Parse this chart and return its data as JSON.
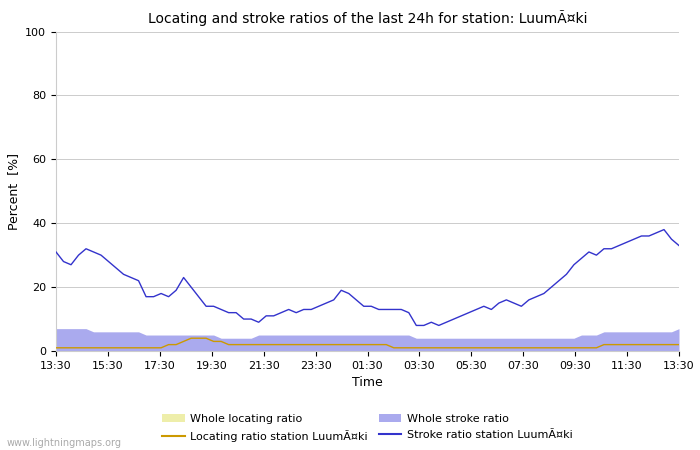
{
  "title": "Locating and stroke ratios of the last 24h for station: LuumÃ¤ki",
  "xlabel": "Time",
  "ylabel": "Percent  [%]",
  "ylim": [
    0,
    100
  ],
  "yticks": [
    0,
    20,
    40,
    60,
    80,
    100
  ],
  "xtick_labels": [
    "13:30",
    "15:30",
    "17:30",
    "19:30",
    "21:30",
    "23:30",
    "01:30",
    "03:30",
    "05:30",
    "07:30",
    "09:30",
    "11:30",
    "13:30"
  ],
  "watermark": "www.lightningmaps.org",
  "bg_color": "#ffffff",
  "plot_bg_color": "#ffffff",
  "grid_color": "#cccccc",
  "stroke_ratio_color": "#3333cc",
  "locating_ratio_color": "#cc9900",
  "whole_stroke_fill_color": "#aaaaee",
  "whole_locating_fill_color": "#eeeeaa",
  "legend_labels": [
    "Whole locating ratio",
    "Locating ratio station LuumÃ¤ki",
    "Whole stroke ratio",
    "Stroke ratio station LuumÃ¤ki"
  ],
  "stroke_ratio": [
    31,
    28,
    27,
    30,
    32,
    31,
    30,
    28,
    26,
    24,
    23,
    22,
    17,
    17,
    18,
    17,
    19,
    23,
    20,
    17,
    14,
    14,
    13,
    12,
    12,
    10,
    10,
    9,
    11,
    11,
    12,
    13,
    12,
    13,
    13,
    14,
    15,
    16,
    19,
    18,
    16,
    14,
    14,
    13,
    13,
    13,
    13,
    12,
    8,
    8,
    9,
    8,
    9,
    10,
    11,
    12,
    13,
    14,
    13,
    15,
    16,
    15,
    14,
    16,
    17,
    18,
    20,
    22,
    24,
    27,
    29,
    31,
    30,
    32,
    32,
    33,
    34,
    35,
    36,
    36,
    37,
    38,
    35,
    33
  ],
  "locating_ratio": [
    1,
    1,
    1,
    1,
    1,
    1,
    1,
    1,
    1,
    1,
    1,
    1,
    1,
    1,
    1,
    2,
    2,
    3,
    4,
    4,
    4,
    3,
    3,
    2,
    2,
    2,
    2,
    2,
    2,
    2,
    2,
    2,
    2,
    2,
    2,
    2,
    2,
    2,
    2,
    2,
    2,
    2,
    2,
    2,
    2,
    1,
    1,
    1,
    1,
    1,
    1,
    1,
    1,
    1,
    1,
    1,
    1,
    1,
    1,
    1,
    1,
    1,
    1,
    1,
    1,
    1,
    1,
    1,
    1,
    1,
    1,
    1,
    1,
    2,
    2,
    2,
    2,
    2,
    2,
    2,
    2,
    2,
    2,
    2
  ],
  "whole_stroke_ratio": [
    7,
    7,
    7,
    7,
    7,
    6,
    6,
    6,
    6,
    6,
    6,
    6,
    5,
    5,
    5,
    5,
    5,
    5,
    5,
    5,
    5,
    5,
    4,
    4,
    4,
    4,
    4,
    5,
    5,
    5,
    5,
    5,
    5,
    5,
    5,
    5,
    5,
    5,
    5,
    5,
    5,
    5,
    5,
    5,
    5,
    5,
    5,
    5,
    4,
    4,
    4,
    4,
    4,
    4,
    4,
    4,
    4,
    4,
    4,
    4,
    4,
    4,
    4,
    4,
    4,
    4,
    4,
    4,
    4,
    4,
    5,
    5,
    5,
    6,
    6,
    6,
    6,
    6,
    6,
    6,
    6,
    6,
    6,
    7
  ],
  "whole_locating_ratio": [
    1,
    1,
    1,
    1,
    1,
    1,
    1,
    1,
    1,
    1,
    1,
    1,
    1,
    1,
    1,
    1,
    1,
    1,
    1,
    1,
    1,
    1,
    1,
    1,
    1,
    1,
    1,
    1,
    1,
    1,
    1,
    1,
    1,
    1,
    1,
    1,
    1,
    1,
    1,
    1,
    1,
    1,
    1,
    1,
    1,
    1,
    1,
    1,
    1,
    1,
    1,
    1,
    1,
    1,
    1,
    1,
    1,
    1,
    1,
    1,
    1,
    1,
    1,
    1,
    1,
    1,
    1,
    1,
    1,
    1,
    1,
    1,
    1,
    1,
    1,
    1,
    1,
    1,
    1,
    1,
    1,
    1,
    1,
    1
  ]
}
